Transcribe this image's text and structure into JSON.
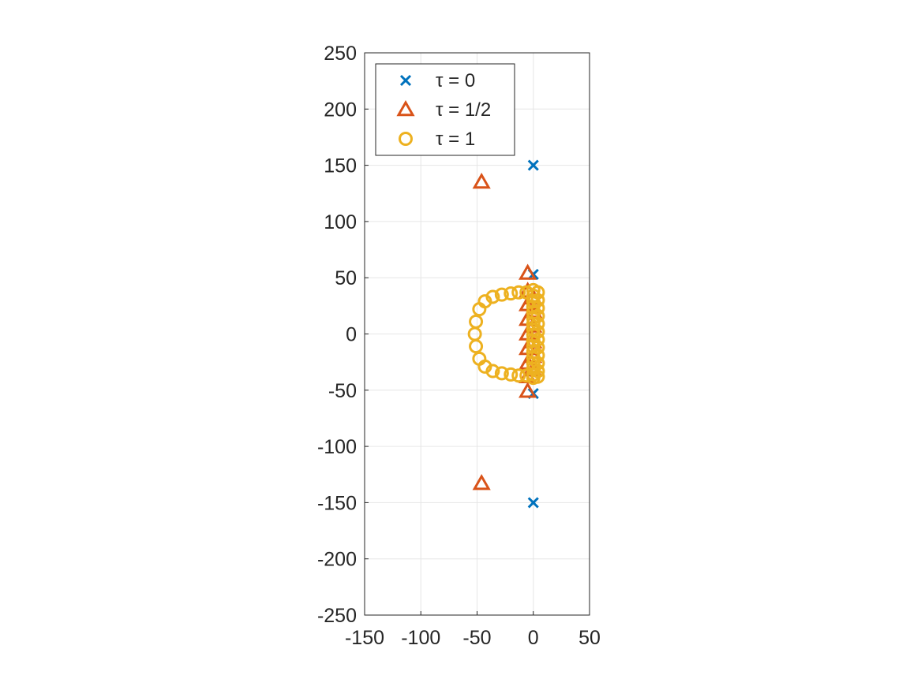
{
  "chart_data": {
    "type": "scatter",
    "title": "",
    "xlabel": "",
    "ylabel": "",
    "xlim": [
      -150,
      50
    ],
    "ylim": [
      -250,
      250
    ],
    "xticks": [
      "-150",
      "-100",
      "-50",
      "0",
      "50"
    ],
    "yticks": [
      "250",
      "200",
      "150",
      "100",
      "50",
      "0",
      "-50",
      "-100",
      "-150",
      "-200",
      "-250"
    ],
    "grid": true,
    "legend_position": "top-left",
    "series": [
      {
        "name": "τ = 0",
        "marker": "x",
        "color": "#0072BD",
        "points": [
          [
            0,
            150
          ],
          [
            0,
            53
          ],
          [
            0,
            -53
          ],
          [
            0,
            -150
          ]
        ]
      },
      {
        "name": "τ = 1/2",
        "marker": "triangle",
        "color": "#D95319",
        "points": [
          [
            -46,
            135
          ],
          [
            -46,
            -133
          ],
          [
            -5,
            54
          ],
          [
            -5,
            -51
          ],
          [
            -5,
            38
          ],
          [
            -5,
            26
          ],
          [
            -5,
            13
          ],
          [
            -5,
            0
          ],
          [
            -5,
            -13
          ],
          [
            -5,
            -26
          ],
          [
            -5,
            -38
          ],
          [
            0,
            32
          ],
          [
            0,
            20
          ],
          [
            0,
            7
          ],
          [
            0,
            -7
          ],
          [
            0,
            -20
          ],
          [
            0,
            -32
          ]
        ]
      },
      {
        "name": "τ = 1",
        "marker": "circle",
        "color": "#EDB120",
        "points": [
          [
            -52,
            0
          ],
          [
            -51,
            11
          ],
          [
            -51,
            -11
          ],
          [
            -48,
            22
          ],
          [
            -48,
            -22
          ],
          [
            -43,
            29
          ],
          [
            -43,
            -29
          ],
          [
            -36,
            33
          ],
          [
            -36,
            -33
          ],
          [
            -28,
            35
          ],
          [
            -28,
            -35
          ],
          [
            -20,
            36
          ],
          [
            -20,
            -36
          ],
          [
            -13,
            37
          ],
          [
            -13,
            -37
          ],
          [
            -6,
            37
          ],
          [
            -6,
            -37
          ],
          [
            0,
            39
          ],
          [
            0,
            34
          ],
          [
            0,
            29
          ],
          [
            0,
            24
          ],
          [
            0,
            19
          ],
          [
            0,
            14
          ],
          [
            0,
            9
          ],
          [
            0,
            4
          ],
          [
            0,
            -1
          ],
          [
            0,
            -6
          ],
          [
            0,
            -11
          ],
          [
            0,
            -16
          ],
          [
            0,
            -21
          ],
          [
            0,
            -26
          ],
          [
            0,
            -31
          ],
          [
            0,
            -36
          ],
          [
            0,
            -39
          ],
          [
            4,
            37
          ],
          [
            4,
            30
          ],
          [
            4,
            23
          ],
          [
            4,
            16
          ],
          [
            4,
            9
          ],
          [
            4,
            2
          ],
          [
            4,
            -5
          ],
          [
            4,
            -12
          ],
          [
            4,
            -19
          ],
          [
            4,
            -26
          ],
          [
            4,
            -33
          ],
          [
            4,
            -38
          ]
        ]
      }
    ]
  }
}
